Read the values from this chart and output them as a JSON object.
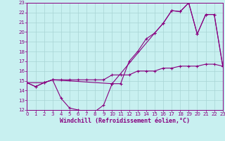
{
  "xlabel": "Windchill (Refroidissement éolien,°C)",
  "bg_color": "#c8f0f0",
  "line_color": "#880080",
  "grid_color": "#a8d4d4",
  "xlim": [
    0,
    23
  ],
  "ylim": [
    12,
    23
  ],
  "xticks": [
    0,
    1,
    2,
    3,
    4,
    5,
    6,
    7,
    8,
    9,
    10,
    11,
    12,
    13,
    14,
    15,
    16,
    17,
    18,
    19,
    20,
    21,
    22,
    23
  ],
  "yticks": [
    12,
    13,
    14,
    15,
    16,
    17,
    18,
    19,
    20,
    21,
    22,
    23
  ],
  "curve1_x": [
    0,
    1,
    2,
    3,
    4,
    5,
    6,
    7,
    8,
    9,
    10,
    11,
    12,
    13,
    14,
    15,
    16,
    17,
    18,
    19,
    20,
    21,
    22,
    23
  ],
  "curve1_y": [
    14.8,
    14.4,
    14.8,
    15.1,
    13.2,
    12.2,
    12.0,
    11.85,
    11.85,
    12.5,
    14.7,
    14.7,
    17.0,
    18.0,
    19.3,
    19.9,
    20.9,
    22.2,
    22.1,
    23.0,
    19.8,
    21.8,
    21.8,
    16.5
  ],
  "curve2_x": [
    0,
    1,
    2,
    3,
    4,
    5,
    6,
    7,
    8,
    9,
    10,
    11,
    12,
    13,
    14,
    15,
    16,
    17,
    18,
    19,
    20,
    21,
    22,
    23
  ],
  "curve2_y": [
    14.8,
    14.4,
    14.8,
    15.1,
    15.1,
    15.1,
    15.1,
    15.1,
    15.1,
    15.1,
    15.6,
    15.6,
    15.6,
    16.0,
    16.0,
    16.0,
    16.3,
    16.3,
    16.5,
    16.5,
    16.5,
    16.7,
    16.7,
    16.5
  ],
  "curve3_x": [
    0,
    2,
    3,
    10,
    15,
    16,
    17,
    18,
    19,
    20,
    21,
    22,
    23
  ],
  "curve3_y": [
    14.8,
    14.8,
    15.1,
    14.7,
    19.9,
    20.9,
    22.2,
    22.1,
    23.0,
    19.8,
    21.8,
    21.8,
    16.5
  ]
}
